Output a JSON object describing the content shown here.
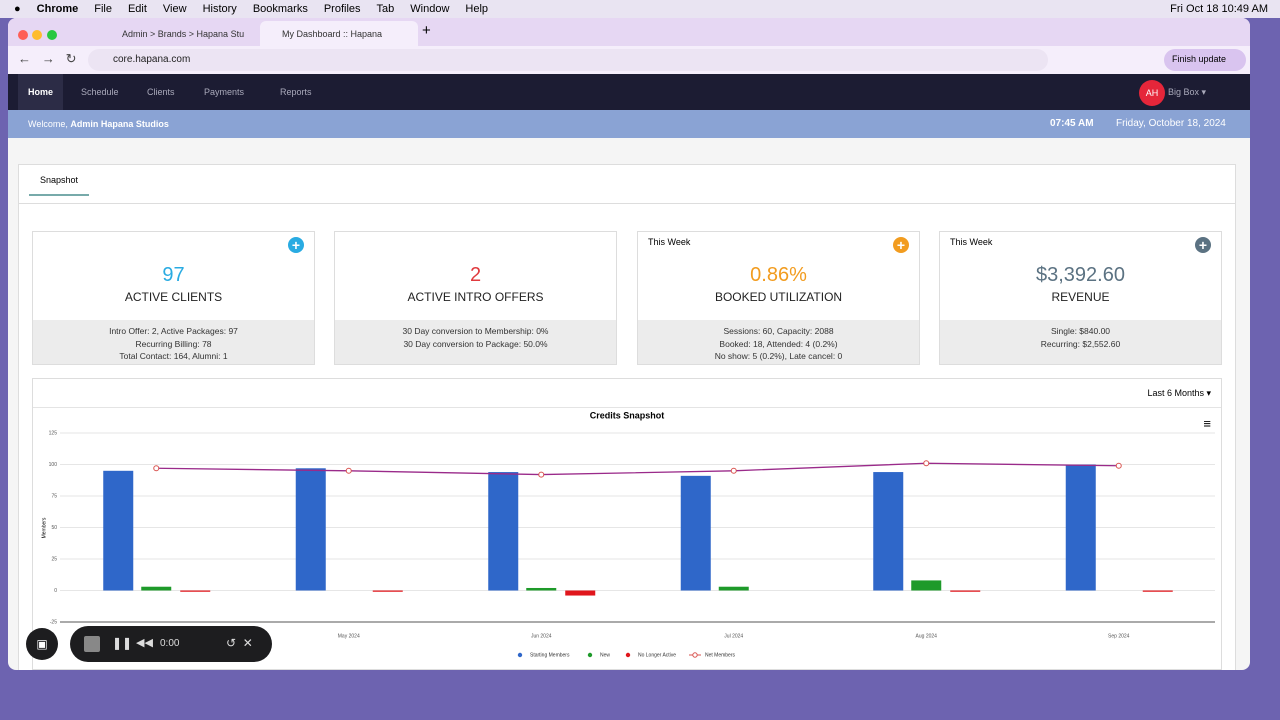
{
  "menubar": {
    "app": "Chrome",
    "items": [
      "File",
      "Edit",
      "View",
      "History",
      "Bookmarks",
      "Profiles",
      "Tab",
      "Window",
      "Help"
    ],
    "clock": "Fri Oct 18  10:49 AM"
  },
  "browser": {
    "tabs": [
      "Admin > Brands > Hapana Stu",
      "My Dashboard :: Hapana"
    ],
    "url": "core.hapana.com",
    "update": "Finish update"
  },
  "nav": {
    "items": [
      "Home",
      "Schedule",
      "Clients",
      "Payments",
      "Reports"
    ],
    "avatar": "AH",
    "account": "Big Box"
  },
  "welcome": {
    "greeting": "Welcome,",
    "name": "Admin Hapana Studios",
    "time": "07:45 AM",
    "date": "Friday, October 18, 2024"
  },
  "tab": "Snapshot",
  "cards": [
    {
      "value": "97",
      "label": "ACTIVE CLIENTS",
      "color": "#29abe2",
      "details": [
        "Intro Offer: 2, Active Packages: 97",
        "Recurring Billing: 78",
        "Total Contact: 164, Alumni: 1"
      ]
    },
    {
      "value": "2",
      "label": "ACTIVE INTRO OFFERS",
      "color": "#e03a3e",
      "details": [
        "30 Day conversion to Membership: 0%",
        "30 Day conversion to Package: 50.0%"
      ]
    },
    {
      "period": "This Week",
      "value": "0.86%",
      "label": "BOOKED UTILIZATION",
      "color": "#f29c1f",
      "details": [
        "Sessions: 60, Capacity: 2088",
        "Booked: 18, Attended: 4 (0.2%)",
        "No show: 5 (0.2%), Late cancel: 0"
      ]
    },
    {
      "period": "This Week",
      "value": "$3,392.60",
      "label": "REVENUE",
      "color": "#5b7282",
      "details": [
        "Single: $840.00",
        "Recurring: $2,552.60"
      ]
    }
  ],
  "range": "Last 6 Months",
  "recorder": {
    "time": "0:00"
  },
  "chart_data": {
    "type": "bar",
    "title": "Credits Snapshot",
    "y_label": "Members",
    "categories": [
      null,
      "May 2024",
      "Jun 2024",
      "Jul 2024",
      "Aug 2024",
      "Sep 2024"
    ],
    "series": [
      {
        "name": "Starting Members",
        "color": "#2f67c9",
        "values": [
          95,
          97,
          94,
          91,
          94,
          100
        ]
      },
      {
        "name": "New",
        "color": "#1e9a2a",
        "values": [
          3,
          0,
          2,
          3,
          8,
          0
        ]
      },
      {
        "name": "No Longer Active",
        "color": "#e0161c",
        "values": [
          -1,
          -1,
          -4,
          0,
          -1,
          -1
        ]
      },
      {
        "name": "Net Members",
        "color": "#9a2a8a",
        "type": "line",
        "values": [
          97,
          95,
          92,
          95,
          101,
          99
        ]
      }
    ],
    "ylim": [
      -25,
      125
    ],
    "yticks": [
      -25,
      0,
      25,
      50,
      75,
      100,
      125
    ],
    "grid": true
  }
}
